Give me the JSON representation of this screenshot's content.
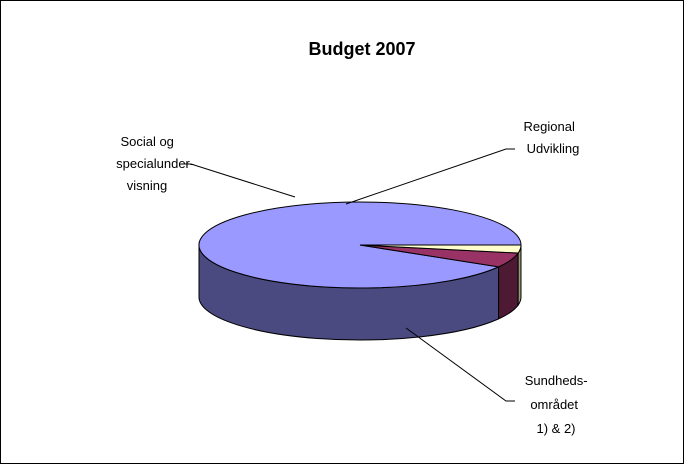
{
  "chart_data": {
    "type": "pie",
    "title": "Budget 2007",
    "three_d": true,
    "start_angle_deg": 0,
    "direction": "counterclockwise",
    "slices": [
      {
        "label_lines": [
          "Sundheds-",
          "området",
          "1) & 2)"
        ],
        "value": 91.5,
        "color": "#9999ff",
        "side_color": "#4a4a80"
      },
      {
        "label_lines": [
          "Social og",
          "specialunder-",
          "visning"
        ],
        "value": 5.5,
        "color": "#993366",
        "side_color": "#4d1933"
      },
      {
        "label_lines": [
          "Regional",
          "Udvikling"
        ],
        "value": 3.0,
        "color": "#ffffcc",
        "side_color": "#99997a"
      }
    ],
    "legend": "none"
  }
}
